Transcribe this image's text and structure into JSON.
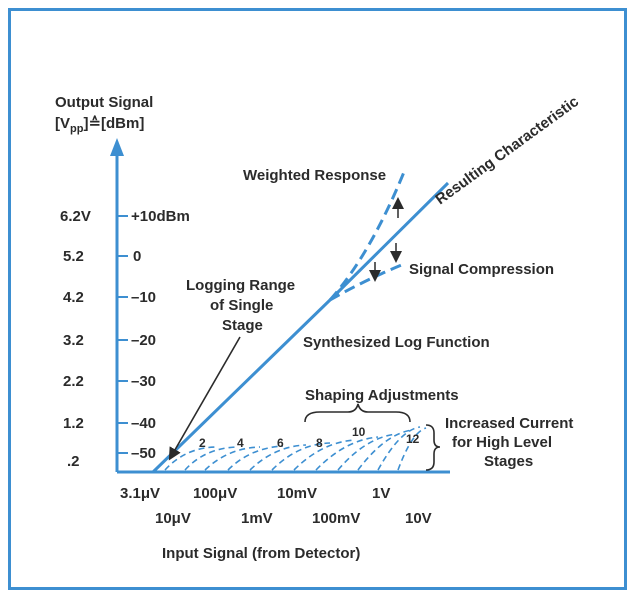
{
  "y_axis": {
    "title_line1": "Output Signal",
    "title_line2_pre": "[V",
    "title_line2_sub": "pp",
    "title_line2_post": "]≙[dBm]",
    "volts": [
      "6.2V",
      "5.2",
      "4.2",
      "3.2",
      "2.2",
      "1.2",
      ".2"
    ],
    "dbm": [
      "+10dBm",
      "0",
      "–10",
      "–20",
      "–30",
      "–40",
      "–50"
    ]
  },
  "x_axis": {
    "title": "Input Signal (from Detector)",
    "top_ticks": [
      "3.1μV",
      "100μV",
      "10mV",
      "1V"
    ],
    "bottom_ticks": [
      "10μV",
      "1mV",
      "100mV",
      "10V"
    ]
  },
  "annotations": {
    "resulting": "Resulting Characteristic",
    "weighted": "Weighted Response",
    "compression": "Signal Compression",
    "logging_1": "Logging Range",
    "logging_2": "of Single",
    "logging_3": "Stage",
    "synthesized": "Synthesized Log Function",
    "shaping": "Shaping Adjustments",
    "increased_1": "Increased Current",
    "increased_2": "for High Level",
    "increased_3": "Stages"
  },
  "stage_numbers": [
    "2",
    "4",
    "6",
    "8",
    "10",
    "12"
  ],
  "colors": {
    "accent": "#3d8fd1",
    "text": "#2b2b2b"
  }
}
